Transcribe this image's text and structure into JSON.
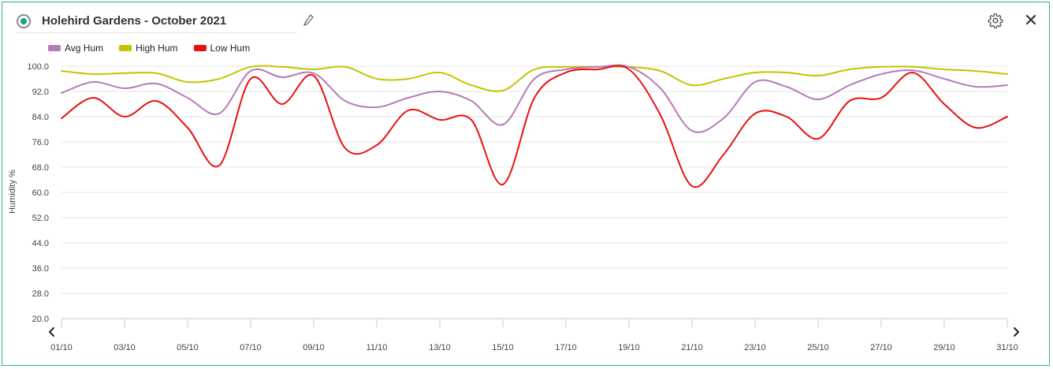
{
  "widget": {
    "title": "Holehird Gardens - October 2021"
  },
  "icons": {
    "status": "radio-icon",
    "edit": "pencil-icon",
    "settings": "gear-icon",
    "close": "close-icon",
    "prev": "chevron-left-icon",
    "next": "chevron-right-icon"
  },
  "colors": {
    "accent": "#2bb39a",
    "avg": "#b57bb9",
    "high": "#c4c400",
    "low": "#e8100f",
    "grid": "#e6e6e6"
  },
  "chart_data": {
    "type": "line",
    "ylabel": "Humidity %",
    "xlabel": "",
    "ylim": [
      20,
      100
    ],
    "yticks": [
      "100.0",
      "92.0",
      "84.0",
      "76.0",
      "68.0",
      "60.0",
      "52.0",
      "44.0",
      "36.0",
      "28.0",
      "20.0"
    ],
    "x": [
      "01/10",
      "02/10",
      "03/10",
      "04/10",
      "05/10",
      "06/10",
      "07/10",
      "08/10",
      "09/10",
      "10/10",
      "11/10",
      "12/10",
      "13/10",
      "14/10",
      "15/10",
      "16/10",
      "17/10",
      "18/10",
      "19/10",
      "20/10",
      "21/10",
      "22/10",
      "23/10",
      "24/10",
      "25/10",
      "26/10",
      "27/10",
      "28/10",
      "29/10",
      "30/10",
      "31/10"
    ],
    "xtick_labels": [
      "01/10",
      "03/10",
      "05/10",
      "07/10",
      "09/10",
      "11/10",
      "13/10",
      "15/10",
      "17/10",
      "19/10",
      "21/10",
      "23/10",
      "25/10",
      "27/10",
      "29/10",
      "31/10"
    ],
    "grid": true,
    "legend_position": "top-left",
    "series": [
      {
        "name": "Avg Hum",
        "color": "#b57bb9",
        "values": [
          91.5,
          95,
          93,
          94.5,
          90,
          85,
          98.5,
          96.5,
          97.8,
          89,
          87,
          90,
          92,
          89,
          81.5,
          96,
          99,
          99.8,
          99.8,
          93,
          79.5,
          83.5,
          95,
          93.5,
          89.5,
          94,
          97.5,
          98.7,
          96,
          93.5,
          94
        ]
      },
      {
        "name": "High Hum",
        "color": "#c4c400",
        "values": [
          98.5,
          97.5,
          97.8,
          97.8,
          95,
          96,
          99.8,
          99.8,
          99,
          99.8,
          96,
          96,
          98,
          94,
          92.3,
          99,
          99.8,
          99.8,
          99.8,
          98.5,
          94,
          96,
          98,
          98,
          97,
          99,
          99.8,
          99.8,
          99,
          98.5,
          97.5
        ]
      },
      {
        "name": "Low Hum",
        "color": "#e8100f",
        "values": [
          83.5,
          90,
          84,
          89,
          80.5,
          68.5,
          96,
          88,
          97,
          74,
          75,
          86,
          83,
          83,
          62.5,
          90,
          98,
          99,
          99,
          84.5,
          62,
          72,
          85,
          84,
          77,
          89,
          90,
          98,
          88,
          80.5,
          84
        ]
      }
    ]
  }
}
